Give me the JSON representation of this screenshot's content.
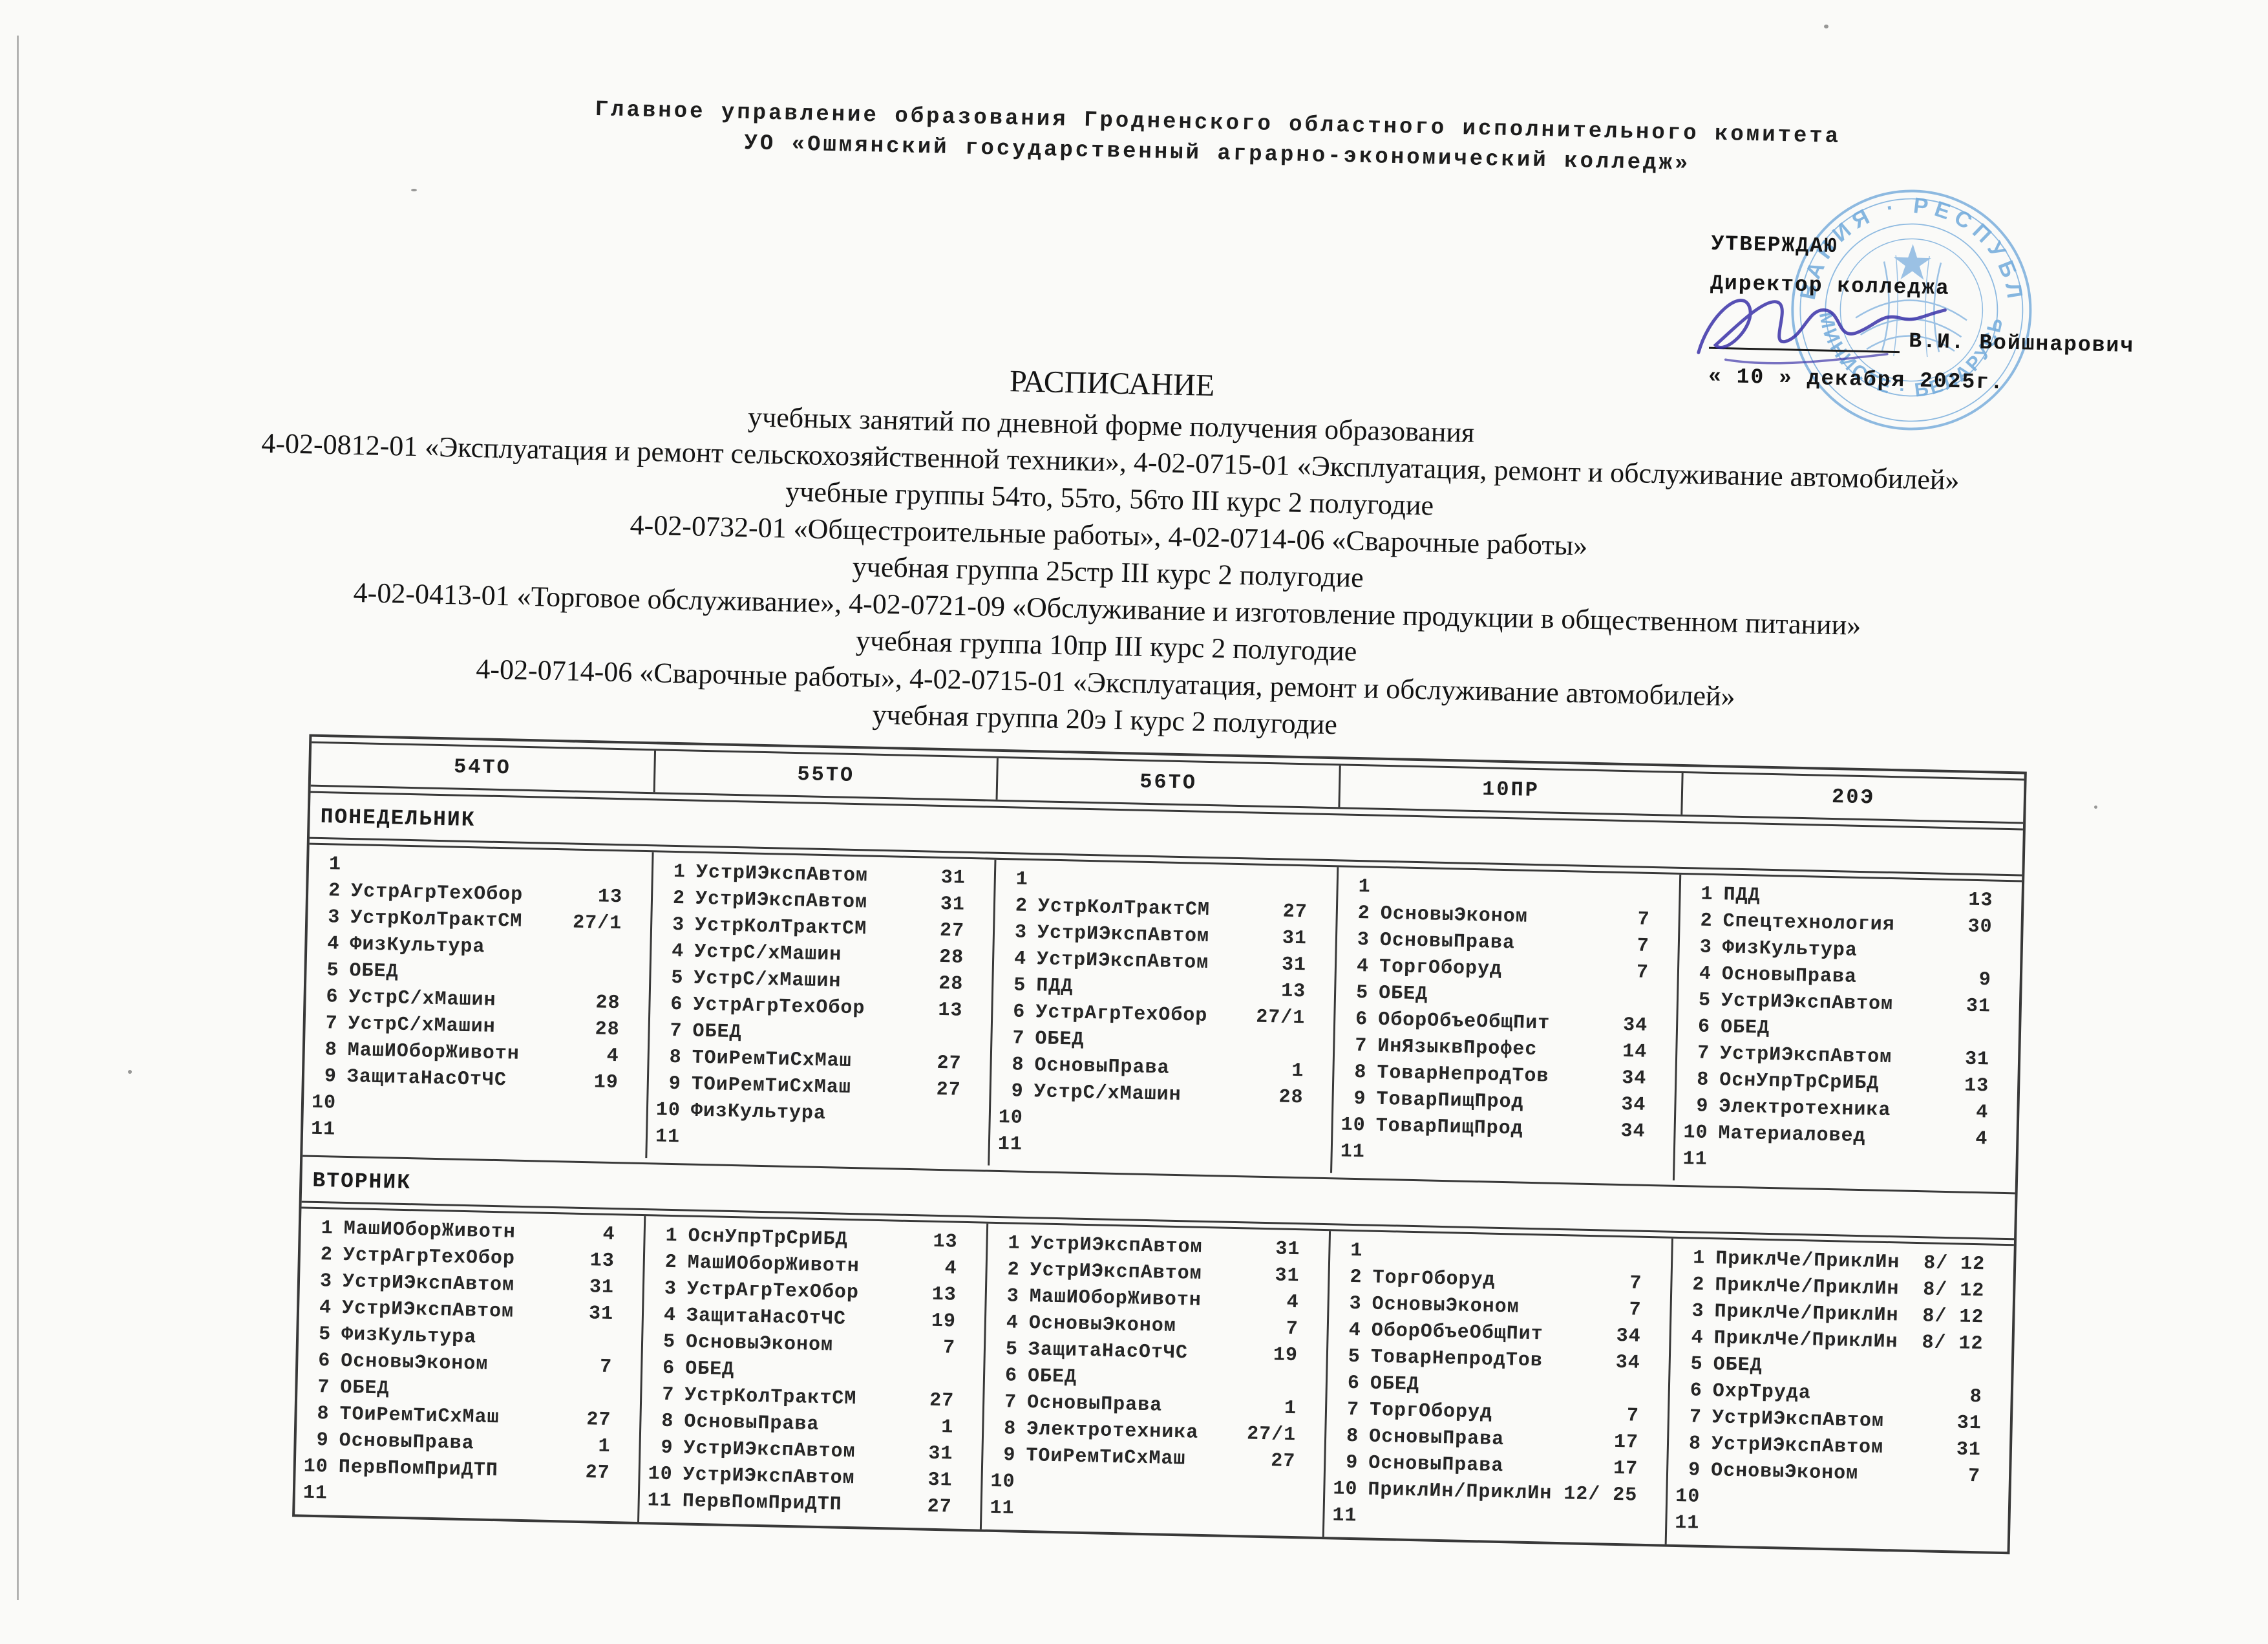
{
  "document": {
    "org_line1": "Главное управление образования Гродненского областного исполнительного комитета",
    "org_line2": "УО «Ошмянский государственный аграрно-экономический колледж»",
    "approval": {
      "heading": "УТВЕРЖДАЮ",
      "role": "Директор колледжа",
      "signer": "В.И. Войшнарович",
      "date": "« 10 » декабря 2025г."
    },
    "stamp": {
      "ring_top": "ВАНИЯ · РЕСПУБЛ",
      "ring_bottom": "МИНИСТЕ · БЕЛАРУСЬ"
    },
    "title": "РАСПИСАНИЕ",
    "subtitle_lines": [
      "учебных занятий по дневной форме получения образования",
      "4-02-0812-01 «Эксплуатация и ремонт сельскохозяйственной техники», 4-02-0715-01 «Эксплуатация, ремонт и обслуживание автомобилей»",
      "учебные группы 54то, 55то, 56то III курс 2 полугодие",
      "4-02-0732-01 «Общестроительные работы», 4-02-0714-06 «Сварочные работы»",
      "учебная группа 25стр III курс 2 полугодие",
      "4-02-0413-01 «Торговое обслуживание», 4-02-0721-09 «Обслуживание и изготовление продукции в общественном питании»",
      "учебная группа 10пр III курс 2 полугодие",
      "4-02-0714-06 «Сварочные работы», 4-02-0715-01 «Эксплуатация, ремонт и обслуживание автомобилей»",
      "учебная группа 20э I курс 2 полугодие"
    ]
  },
  "colors": {
    "stamp_blue": "#5f9fd8",
    "signature_ink": "#3a31a8",
    "text": "#232323",
    "table_line": "#383838"
  },
  "table": {
    "groups": [
      "54ТО",
      "55ТО",
      "56ТО",
      "10ПР",
      "20Э"
    ],
    "days": [
      {
        "name": "ПОНЕДЕЛЬНИК",
        "columns": [
          [
            {
              "n": "1",
              "s": "",
              "r": ""
            },
            {
              "n": "2",
              "s": "УстрАгрТехОбор",
              "r": "13"
            },
            {
              "n": "3",
              "s": "УстрКолТрактСМ",
              "r": "27/1"
            },
            {
              "n": "4",
              "s": "ФизКультура",
              "r": ""
            },
            {
              "n": "5",
              "s": "ОБЕД",
              "r": ""
            },
            {
              "n": "6",
              "s": "УстрС/хМашин",
              "r": "28"
            },
            {
              "n": "7",
              "s": "УстрС/хМашин",
              "r": "28"
            },
            {
              "n": "8",
              "s": "МашИОборЖивотн",
              "r": "4"
            },
            {
              "n": "9",
              "s": "ЗащитаНасОтЧС",
              "r": "19"
            },
            {
              "n": "10",
              "s": "",
              "r": ""
            },
            {
              "n": "11",
              "s": "",
              "r": ""
            }
          ],
          [
            {
              "n": "1",
              "s": "УстрИЭкспАвтом",
              "r": "31"
            },
            {
              "n": "2",
              "s": "УстрИЭкспАвтом",
              "r": "31"
            },
            {
              "n": "3",
              "s": "УстрКолТрактСМ",
              "r": "27"
            },
            {
              "n": "4",
              "s": "УстрС/хМашин",
              "r": "28"
            },
            {
              "n": "5",
              "s": "УстрС/хМашин",
              "r": "28"
            },
            {
              "n": "6",
              "s": "УстрАгрТехОбор",
              "r": "13"
            },
            {
              "n": "7",
              "s": "ОБЕД",
              "r": ""
            },
            {
              "n": "8",
              "s": "ТОиРемТиСхМаш",
              "r": "27"
            },
            {
              "n": "9",
              "s": "ТОиРемТиСхМаш",
              "r": "27"
            },
            {
              "n": "10",
              "s": "ФизКультура",
              "r": ""
            },
            {
              "n": "11",
              "s": "",
              "r": ""
            }
          ],
          [
            {
              "n": "1",
              "s": "",
              "r": ""
            },
            {
              "n": "2",
              "s": "УстрКолТрактСМ",
              "r": "27"
            },
            {
              "n": "3",
              "s": "УстрИЭкспАвтом",
              "r": "31"
            },
            {
              "n": "4",
              "s": "УстрИЭкспАвтом",
              "r": "31"
            },
            {
              "n": "5",
              "s": "ПДД",
              "r": "13"
            },
            {
              "n": "6",
              "s": "УстрАгрТехОбор",
              "r": "27/1"
            },
            {
              "n": "7",
              "s": "ОБЕД",
              "r": ""
            },
            {
              "n": "8",
              "s": "ОсновыПрава",
              "r": "1"
            },
            {
              "n": "9",
              "s": "УстрС/хМашин",
              "r": "28"
            },
            {
              "n": "10",
              "s": "",
              "r": ""
            },
            {
              "n": "11",
              "s": "",
              "r": ""
            }
          ],
          [
            {
              "n": "1",
              "s": "",
              "r": ""
            },
            {
              "n": "2",
              "s": "ОсновыЭконом",
              "r": "7"
            },
            {
              "n": "3",
              "s": "ОсновыПрава",
              "r": "7"
            },
            {
              "n": "4",
              "s": "ТоргОборуд",
              "r": "7"
            },
            {
              "n": "5",
              "s": "ОБЕД",
              "r": ""
            },
            {
              "n": "6",
              "s": "ОборОбъеОбщПит",
              "r": "34"
            },
            {
              "n": "7",
              "s": "ИнЯзыквПрофес",
              "r": "14"
            },
            {
              "n": "8",
              "s": "ТоварНепродТов",
              "r": "34"
            },
            {
              "n": "9",
              "s": "ТоварПищПрод",
              "r": "34"
            },
            {
              "n": "10",
              "s": "ТоварПищПрод",
              "r": "34"
            },
            {
              "n": "11",
              "s": "",
              "r": ""
            }
          ],
          [
            {
              "n": "1",
              "s": "ПДД",
              "r": "13"
            },
            {
              "n": "2",
              "s": "Спецтехнология",
              "r": "30"
            },
            {
              "n": "3",
              "s": "ФизКультура",
              "r": ""
            },
            {
              "n": "4",
              "s": "ОсновыПрава",
              "r": "9"
            },
            {
              "n": "5",
              "s": "УстрИЭкспАвтом",
              "r": "31"
            },
            {
              "n": "6",
              "s": "ОБЕД",
              "r": ""
            },
            {
              "n": "7",
              "s": "УстрИЭкспАвтом",
              "r": "31"
            },
            {
              "n": "8",
              "s": "ОснУпрТрСрИБД",
              "r": "13"
            },
            {
              "n": "9",
              "s": "Электротехника",
              "r": "4"
            },
            {
              "n": "10",
              "s": "Материаловед",
              "r": "4"
            },
            {
              "n": "11",
              "s": "",
              "r": ""
            }
          ]
        ]
      },
      {
        "name": "ВТОРНИК",
        "columns": [
          [
            {
              "n": "1",
              "s": "МашИОборЖивотн",
              "r": "4"
            },
            {
              "n": "2",
              "s": "УстрАгрТехОбор",
              "r": "13"
            },
            {
              "n": "3",
              "s": "УстрИЭкспАвтом",
              "r": "31"
            },
            {
              "n": "4",
              "s": "УстрИЭкспАвтом",
              "r": "31"
            },
            {
              "n": "5",
              "s": "ФизКультура",
              "r": ""
            },
            {
              "n": "6",
              "s": "ОсновыЭконом",
              "r": "7"
            },
            {
              "n": "7",
              "s": "ОБЕД",
              "r": ""
            },
            {
              "n": "8",
              "s": "ТОиРемТиСхМаш",
              "r": "27"
            },
            {
              "n": "9",
              "s": "ОсновыПрава",
              "r": "1"
            },
            {
              "n": "10",
              "s": "ПервПомПриДТП",
              "r": "27"
            },
            {
              "n": "11",
              "s": "",
              "r": ""
            }
          ],
          [
            {
              "n": "1",
              "s": "ОснУпрТрСрИБД",
              "r": "13"
            },
            {
              "n": "2",
              "s": "МашИОборЖивотн",
              "r": "4"
            },
            {
              "n": "3",
              "s": "УстрАгрТехОбор",
              "r": "13"
            },
            {
              "n": "4",
              "s": "ЗащитаНасОтЧС",
              "r": "19"
            },
            {
              "n": "5",
              "s": "ОсновыЭконом",
              "r": "7"
            },
            {
              "n": "6",
              "s": "ОБЕД",
              "r": ""
            },
            {
              "n": "7",
              "s": "УстрКолТрактСМ",
              "r": "27"
            },
            {
              "n": "8",
              "s": "ОсновыПрава",
              "r": "1"
            },
            {
              "n": "9",
              "s": "УстрИЭкспАвтом",
              "r": "31"
            },
            {
              "n": "10",
              "s": "УстрИЭкспАвтом",
              "r": "31"
            },
            {
              "n": "11",
              "s": "ПервПомПриДТП",
              "r": "27"
            }
          ],
          [
            {
              "n": "1",
              "s": "УстрИЭкспАвтом",
              "r": "31"
            },
            {
              "n": "2",
              "s": "УстрИЭкспАвтом",
              "r": "31"
            },
            {
              "n": "3",
              "s": "МашИОборЖивотн",
              "r": "4"
            },
            {
              "n": "4",
              "s": "ОсновыЭконом",
              "r": "7"
            },
            {
              "n": "5",
              "s": "ЗащитаНасОтЧС",
              "r": "19"
            },
            {
              "n": "6",
              "s": "ОБЕД",
              "r": ""
            },
            {
              "n": "7",
              "s": "ОсновыПрава",
              "r": "1"
            },
            {
              "n": "8",
              "s": "Электротехника",
              "r": "27/1"
            },
            {
              "n": "9",
              "s": "ТОиРемТиСхМаш",
              "r": "27"
            },
            {
              "n": "10",
              "s": "",
              "r": ""
            },
            {
              "n": "11",
              "s": "",
              "r": ""
            }
          ],
          [
            {
              "n": "1",
              "s": "",
              "r": ""
            },
            {
              "n": "2",
              "s": "ТоргОборуд",
              "r": "7"
            },
            {
              "n": "3",
              "s": "ОсновыЭконом",
              "r": "7"
            },
            {
              "n": "4",
              "s": "ОборОбъеОбщПит",
              "r": "34"
            },
            {
              "n": "5",
              "s": "ТоварНепродТов",
              "r": "34"
            },
            {
              "n": "6",
              "s": "ОБЕД",
              "r": ""
            },
            {
              "n": "7",
              "s": "ТоргОборуд",
              "r": "7"
            },
            {
              "n": "8",
              "s": "ОсновыПрава",
              "r": "17"
            },
            {
              "n": "9",
              "s": "ОсновыПрава",
              "r": "17"
            },
            {
              "n": "10",
              "s": "ПриклИн/ПриклИн",
              "r": "12/ 25"
            },
            {
              "n": "11",
              "s": "",
              "r": ""
            }
          ],
          [
            {
              "n": "1",
              "s": "ПриклЧе/ПриклИн",
              "r": "8/ 12"
            },
            {
              "n": "2",
              "s": "ПриклЧе/ПриклИн",
              "r": "8/ 12"
            },
            {
              "n": "3",
              "s": "ПриклЧе/ПриклИн",
              "r": "8/ 12"
            },
            {
              "n": "4",
              "s": "ПриклЧе/ПриклИн",
              "r": "8/ 12"
            },
            {
              "n": "5",
              "s": "ОБЕД",
              "r": ""
            },
            {
              "n": "6",
              "s": "ОхрТруда",
              "r": "8"
            },
            {
              "n": "7",
              "s": "УстрИЭкспАвтом",
              "r": "31"
            },
            {
              "n": "8",
              "s": "УстрИЭкспАвтом",
              "r": "31"
            },
            {
              "n": "9",
              "s": "ОсновыЭконом",
              "r": "7"
            },
            {
              "n": "10",
              "s": "",
              "r": ""
            },
            {
              "n": "11",
              "s": "",
              "r": ""
            }
          ]
        ]
      }
    ]
  }
}
